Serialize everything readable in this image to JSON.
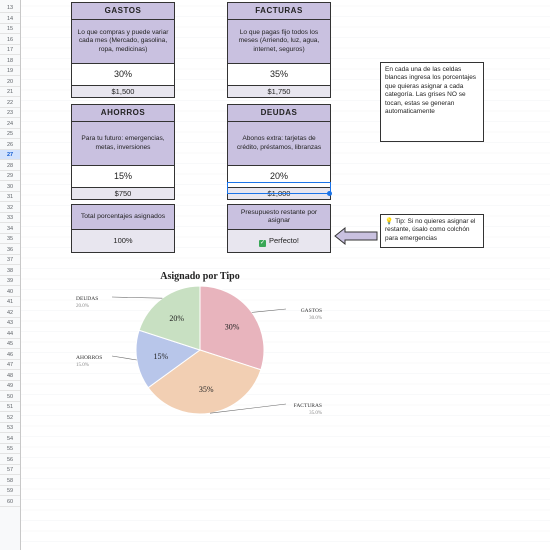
{
  "rows": [
    {
      "n": "13",
      "sel": false
    },
    {
      "n": "14",
      "sel": false
    },
    {
      "n": "15",
      "sel": false
    },
    {
      "n": "16",
      "sel": false
    },
    {
      "n": "17",
      "sel": false
    },
    {
      "n": "18",
      "sel": false
    },
    {
      "n": "19",
      "sel": false
    },
    {
      "n": "20",
      "sel": false
    },
    {
      "n": "21",
      "sel": false
    },
    {
      "n": "22",
      "sel": false
    },
    {
      "n": "23",
      "sel": false
    },
    {
      "n": "24",
      "sel": false
    },
    {
      "n": "25",
      "sel": false
    },
    {
      "n": "26",
      "sel": false
    },
    {
      "n": "27",
      "sel": true
    },
    {
      "n": "28",
      "sel": false
    },
    {
      "n": "29",
      "sel": false
    },
    {
      "n": "30",
      "sel": false
    },
    {
      "n": "31",
      "sel": false
    },
    {
      "n": "32",
      "sel": false
    },
    {
      "n": "33",
      "sel": false
    },
    {
      "n": "34",
      "sel": false
    },
    {
      "n": "35",
      "sel": false
    },
    {
      "n": "36",
      "sel": false
    },
    {
      "n": "37",
      "sel": false
    },
    {
      "n": "38",
      "sel": false
    },
    {
      "n": "39",
      "sel": false
    },
    {
      "n": "40",
      "sel": false
    },
    {
      "n": "41",
      "sel": false
    },
    {
      "n": "42",
      "sel": false
    },
    {
      "n": "43",
      "sel": false
    },
    {
      "n": "44",
      "sel": false
    },
    {
      "n": "45",
      "sel": false
    },
    {
      "n": "46",
      "sel": false
    },
    {
      "n": "47",
      "sel": false
    },
    {
      "n": "48",
      "sel": false
    },
    {
      "n": "49",
      "sel": false
    },
    {
      "n": "50",
      "sel": false
    },
    {
      "n": "51",
      "sel": false
    },
    {
      "n": "52",
      "sel": false
    },
    {
      "n": "53",
      "sel": false
    },
    {
      "n": "54",
      "sel": false
    },
    {
      "n": "55",
      "sel": false
    },
    {
      "n": "56",
      "sel": false
    },
    {
      "n": "57",
      "sel": false
    },
    {
      "n": "58",
      "sel": false
    },
    {
      "n": "59",
      "sel": false
    },
    {
      "n": "60",
      "sel": false
    }
  ],
  "cards": {
    "gastos": {
      "title": "GASTOS",
      "desc": "Lo que compras y puede variar cada mes (Mercado, gasolina, ropa, medicinas)",
      "pct": "30%",
      "amount": "$1,500"
    },
    "facturas": {
      "title": "FACTURAS",
      "desc": "Lo que pagas fijo todos los meses (Arriendo, luz, agua, internet, seguros)",
      "pct": "35%",
      "amount": "$1,750"
    },
    "ahorros": {
      "title": "AHORROS",
      "desc": "Para tu futuro: emergencias, metas, inversiones",
      "pct": "15%",
      "amount": "$750"
    },
    "deudas": {
      "title": "DEUDAS",
      "desc": "Abonos extra: tarjetas de crédito, préstamos, libranzas",
      "pct": "20%",
      "amount": "$1,000"
    }
  },
  "totals": {
    "label": "Total porcentajes asignados",
    "value": "100%"
  },
  "budget": {
    "label": "Presupuesto restante por asignar",
    "value": "Perfecto!",
    "check_icon": "✓"
  },
  "instructions": "En cada una de las celdas blancas ingresa los porcentajes que quieras asignar a cada categoría. Las grises NO se tocan, estas se generan automaticamente",
  "tip": {
    "icon": "💡",
    "text": "Tip: Si no quieres asignar el restante, úsalo como colchón para emergencias"
  },
  "chart_data": {
    "type": "pie",
    "title": "Asignado por Tipo",
    "slices": [
      {
        "name": "GASTOS",
        "value": 30,
        "label": "30%",
        "legend_pct": "30.0%",
        "color": "#e8b4bd"
      },
      {
        "name": "FACTURAS",
        "value": 35,
        "label": "35%",
        "legend_pct": "35.0%",
        "color": "#f2cfb3"
      },
      {
        "name": "AHORROS",
        "value": 15,
        "label": "15%",
        "legend_pct": "15.0%",
        "color": "#b8c6ea"
      },
      {
        "name": "DEUDAS",
        "value": 20,
        "label": "20%",
        "legend_pct": "20.0%",
        "color": "#c8e0c2"
      }
    ]
  }
}
